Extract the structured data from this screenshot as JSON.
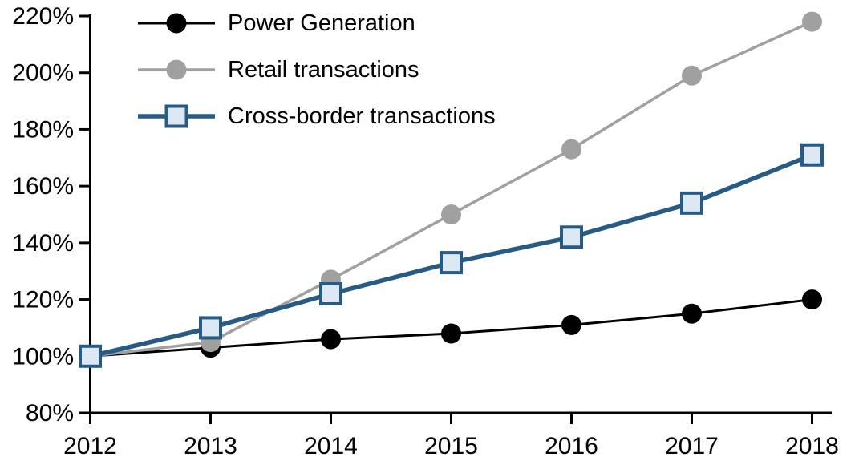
{
  "chart_data": {
    "type": "line",
    "title": "",
    "xlabel": "",
    "ylabel": "",
    "categories": [
      "2012",
      "2013",
      "2014",
      "2015",
      "2016",
      "2017",
      "2018"
    ],
    "series": [
      {
        "name": "Power Generation",
        "values": [
          100,
          103,
          106,
          108,
          111,
          115,
          120
        ],
        "color": "#000000",
        "marker": "circle",
        "marker_fill": "#000000",
        "line_width": 3
      },
      {
        "name": "Retail transactions",
        "values": [
          100,
          105,
          127,
          150,
          173,
          199,
          218
        ],
        "color": "#A0A0A0",
        "marker": "circle",
        "marker_fill": "#A0A0A0",
        "line_width": 3.5
      },
      {
        "name": "Cross-border transactions",
        "values": [
          100,
          110,
          122,
          133,
          142,
          154,
          171
        ],
        "color": "#275A84",
        "marker": "square",
        "marker_fill": "#DCE9F5",
        "line_width": 5.5
      }
    ],
    "ylim": [
      80,
      220
    ],
    "ytick_step": 20,
    "ytick_labels": [
      "80%",
      "100%",
      "120%",
      "140%",
      "160%",
      "180%",
      "200%",
      "220%"
    ],
    "xtick_labels": [
      "2012",
      "2013",
      "2014",
      "2015",
      "2016",
      "2017",
      "2018"
    ],
    "grid": false,
    "legend_position": "top-left-inside",
    "axis_color": "#000000"
  }
}
